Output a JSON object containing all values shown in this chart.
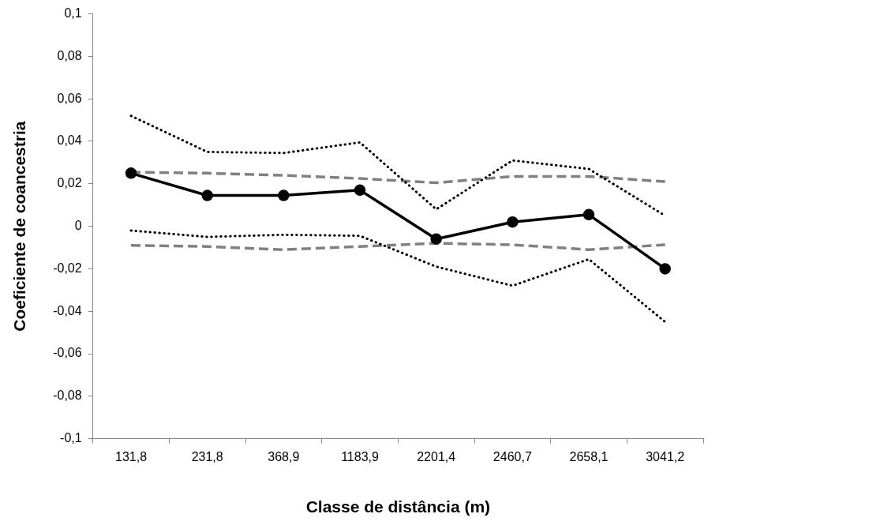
{
  "chart_data": {
    "type": "line",
    "xlabel": "Classe de distância (m)",
    "ylabel": "Coeficiente de coancestria",
    "categories": [
      "131,8",
      "231,8",
      "368,9",
      "1183,9",
      "2201,4",
      "2460,7",
      "2658,1",
      "3041,2"
    ],
    "series": [
      {
        "color": "#000000",
        "marker": "circle",
        "line_style": "solid",
        "values": [
          0.025,
          0.0145,
          0.0145,
          0.017,
          -0.006,
          0.002,
          0.0055,
          -0.02
        ]
      },
      {
        "color": "#000000",
        "marker": "none",
        "line_style": "dotted",
        "values": [
          0.052,
          0.035,
          0.0345,
          0.0395,
          0.008,
          0.031,
          0.027,
          0.005
        ]
      },
      {
        "color": "#000000",
        "marker": "none",
        "line_style": "dotted",
        "values": [
          -0.002,
          -0.005,
          -0.004,
          -0.0045,
          -0.019,
          -0.028,
          -0.0155,
          -0.045
        ]
      },
      {
        "color": "#808080",
        "marker": "none",
        "line_style": "dashed",
        "values": [
          0.0255,
          0.025,
          0.024,
          0.0225,
          0.0205,
          0.0235,
          0.0235,
          0.021
        ]
      },
      {
        "color": "#808080",
        "marker": "none",
        "line_style": "dashed",
        "values": [
          -0.009,
          -0.0095,
          -0.011,
          -0.0095,
          -0.008,
          -0.0087,
          -0.011,
          -0.0087
        ]
      }
    ],
    "ylim": [
      -0.1,
      0.1
    ],
    "yticks": [
      {
        "value": -0.1,
        "label": "-0,1"
      },
      {
        "value": -0.08,
        "label": "-0,08"
      },
      {
        "value": -0.06,
        "label": "-0,06"
      },
      {
        "value": -0.04,
        "label": "-0,04"
      },
      {
        "value": -0.02,
        "label": "-0,02"
      },
      {
        "value": 0,
        "label": "0"
      },
      {
        "value": 0.02,
        "label": "0,02"
      },
      {
        "value": 0.04,
        "label": "0,04"
      },
      {
        "value": 0.06,
        "label": "0,06"
      },
      {
        "value": 0.08,
        "label": "0,08"
      },
      {
        "value": 0.1,
        "label": "0,1"
      }
    ],
    "grid": false,
    "legend": false
  }
}
